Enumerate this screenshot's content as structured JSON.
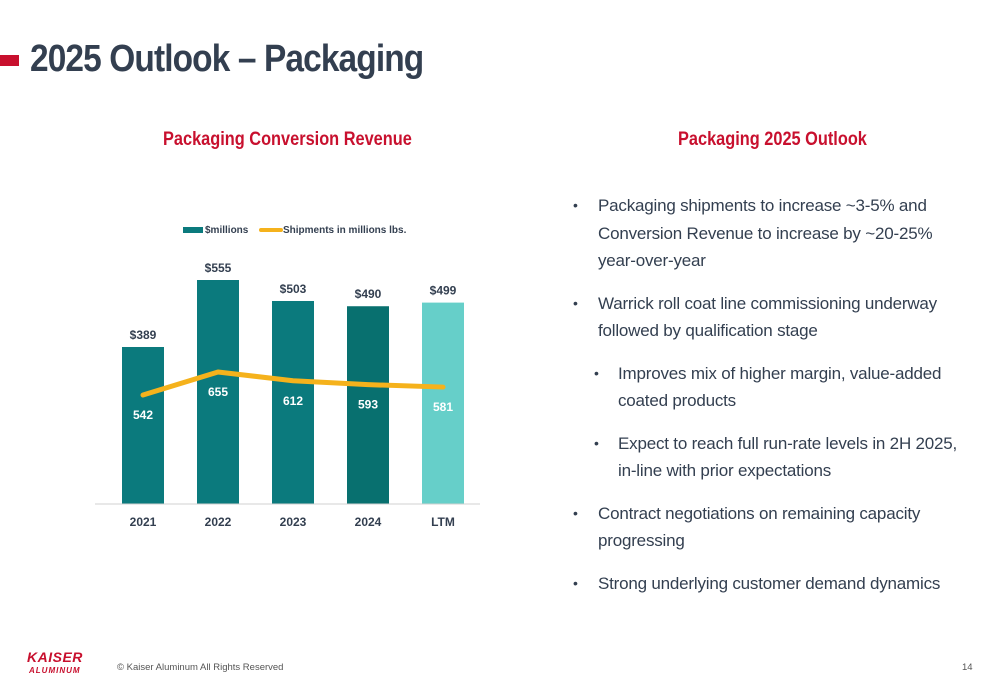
{
  "header": {
    "title": "2025 Outlook – Packaging"
  },
  "chart_section": {
    "heading": "Packaging Conversion Revenue"
  },
  "outlook_section": {
    "heading": "Packaging 2025 Outlook",
    "bullets": [
      {
        "level": 1,
        "text": "Packaging shipments to increase ~3-5% and Conversion Revenue to increase by ~20-25% year-over-year"
      },
      {
        "level": 1,
        "text": "Warrick roll coat line commissioning underway followed by qualification stage"
      },
      {
        "level": 2,
        "text": "Improves mix of higher margin, value-added coated products"
      },
      {
        "level": 2,
        "text": "Expect to reach full run-rate levels in 2H 2025, in-line with prior expectations"
      },
      {
        "level": 1,
        "text": "Contract negotiations on remaining capacity progressing"
      },
      {
        "level": 1,
        "text": "Strong underlying customer demand dynamics"
      }
    ]
  },
  "chart_data": {
    "type": "bar",
    "categories": [
      "2021",
      "2022",
      "2023",
      "2024",
      "LTM"
    ],
    "series": [
      {
        "name": "$millions",
        "kind": "bar",
        "values": [
          389,
          555,
          503,
          490,
          499
        ],
        "labels": [
          "$389",
          "$555",
          "$503",
          "$490",
          "$499"
        ],
        "colors": [
          "#0b7a7d",
          "#0b7a7d",
          "#0b7a7d",
          "#08706f",
          "#66cfc9"
        ]
      },
      {
        "name": "Shipments in millions lbs.",
        "kind": "line",
        "values": [
          542,
          655,
          612,
          593,
          581
        ],
        "labels": [
          "542",
          "655",
          "612",
          "593",
          "581"
        ],
        "color": "#f5b21c"
      }
    ],
    "legend": {
      "position": "top",
      "swatch_bar": "#0b7a7d",
      "swatch_line": "#f5b21c"
    },
    "grid": false
  },
  "footer": {
    "logo_text_1": "KAISER",
    "logo_text_2": "ALUMINUM",
    "copyright": "© Kaiser Aluminum All Rights Reserved",
    "page_number": "14"
  },
  "colors": {
    "accent_red": "#c8102e",
    "title_text": "#333f50",
    "bar_teal": "#0b7a7d",
    "bar_ltm": "#66cfc9",
    "line_gold": "#f5b21c"
  }
}
